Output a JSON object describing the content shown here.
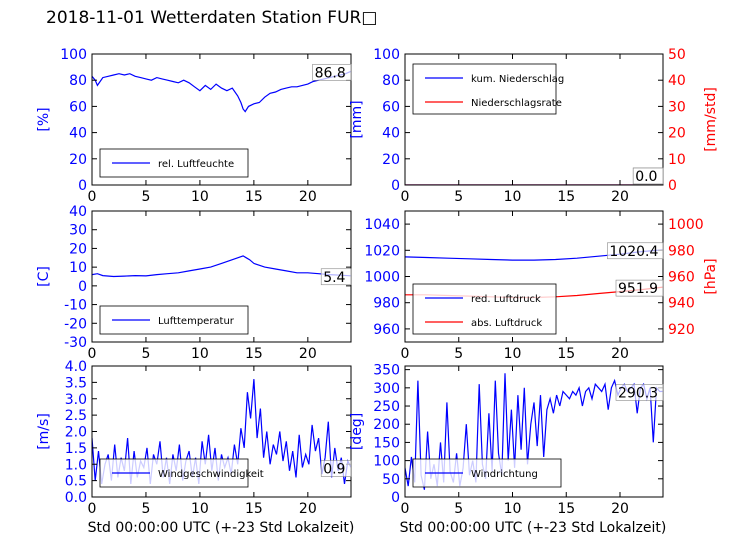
{
  "title": "2018-11-01 Wetterdaten Station FUR□",
  "xlabel": "Std 00:00:00 UTC (+-23 Std Lokalzeit)",
  "colors": {
    "left": "#0000ff",
    "right": "#ff0000",
    "text": "#000000"
  },
  "chart_data": [
    {
      "type": "line",
      "panel": "top-left",
      "ylabel": "[%]",
      "xlim": [
        0,
        24
      ],
      "ylim": [
        0,
        100
      ],
      "xticks": [
        0,
        5,
        10,
        15,
        20
      ],
      "yticks": [
        0,
        20,
        40,
        60,
        80,
        100
      ],
      "legend": "lower-left",
      "last_value": "86.8",
      "series": [
        {
          "name": "rel. Luftfeuchte",
          "axis": "left",
          "color": "#0000ff",
          "x": [
            0,
            0.3,
            0.5,
            1,
            1.5,
            2,
            2.5,
            3,
            3.5,
            4,
            4.5,
            5,
            5.5,
            6,
            6.5,
            7,
            7.5,
            8,
            8.5,
            9,
            9.5,
            10,
            10.5,
            11,
            11.5,
            12,
            12.5,
            13,
            13.5,
            13.8,
            14,
            14.2,
            14.5,
            15,
            15.5,
            16,
            16.5,
            17,
            17.5,
            18,
            18.5,
            19,
            19.5,
            20,
            20.5,
            21,
            21.5,
            22,
            22.5,
            23,
            23.5,
            24
          ],
          "y": [
            83,
            80,
            76,
            82,
            83,
            84,
            85,
            84,
            85,
            83,
            82,
            81,
            80,
            82,
            81,
            80,
            79,
            78,
            80,
            78,
            75,
            72,
            76,
            73,
            77,
            74,
            72,
            74,
            68,
            63,
            58,
            56,
            60,
            62,
            63,
            67,
            70,
            71,
            73,
            74,
            75,
            75,
            76,
            77,
            79,
            80,
            81,
            82,
            83,
            84,
            85,
            86.8
          ]
        }
      ]
    },
    {
      "type": "line",
      "panel": "top-right",
      "ylabel": "[mm]",
      "y2label": "[mm/std]",
      "xlim": [
        0,
        24
      ],
      "ylim": [
        0,
        100
      ],
      "y2lim": [
        0,
        50
      ],
      "xticks": [
        0,
        5,
        10,
        15,
        20
      ],
      "yticks": [
        0,
        20,
        40,
        60,
        80,
        100
      ],
      "y2ticks": [
        0,
        10,
        20,
        30,
        40,
        50
      ],
      "legend": "upper-left",
      "last_values": [
        "0.0",
        "0.0"
      ],
      "series": [
        {
          "name": "kum. Niederschlag",
          "axis": "left",
          "color": "#0000ff",
          "x": [
            0,
            24
          ],
          "y": [
            0,
            0
          ]
        },
        {
          "name": "Niederschlagsrate",
          "axis": "right",
          "color": "#ff0000",
          "x": [
            0,
            24
          ],
          "y": [
            0,
            0
          ]
        }
      ]
    },
    {
      "type": "line",
      "panel": "middle-left",
      "ylabel": "[C]",
      "xlim": [
        0,
        24
      ],
      "ylim": [
        -30,
        40
      ],
      "xticks": [
        0,
        5,
        10,
        15,
        20
      ],
      "yticks": [
        -30,
        -20,
        -10,
        0,
        10,
        20,
        30,
        40
      ],
      "legend": "lower-left",
      "last_value": "5.4",
      "series": [
        {
          "name": "Lufttemperatur",
          "axis": "left",
          "color": "#0000ff",
          "x": [
            0,
            0.5,
            1,
            2,
            3,
            4,
            5,
            6,
            7,
            8,
            9,
            10,
            11,
            12,
            13,
            13.5,
            14,
            14.3,
            14.6,
            15,
            16,
            17,
            18,
            19,
            20,
            21,
            22,
            23,
            24
          ],
          "y": [
            6,
            6.5,
            5.5,
            5,
            5.2,
            5.5,
            5.3,
            6,
            6.5,
            7,
            8,
            9,
            10,
            12,
            14,
            15,
            16,
            15,
            14,
            12,
            10,
            9,
            8,
            7,
            7,
            6.5,
            6,
            5.7,
            5.4
          ]
        }
      ]
    },
    {
      "type": "line",
      "panel": "middle-right",
      "ylabel": "",
      "y2label": "[hPa]",
      "xlim": [
        0,
        24
      ],
      "ylim": [
        950,
        1050
      ],
      "y2lim": [
        910,
        1010
      ],
      "xticks": [
        0,
        5,
        10,
        15,
        20
      ],
      "yticks": [
        960,
        980,
        1000,
        1020,
        1040
      ],
      "y2ticks": [
        920,
        940,
        960,
        980,
        1000
      ],
      "legend": "lower-left",
      "last_values": [
        "1020.4",
        "951.9"
      ],
      "series": [
        {
          "name": "red. Luftdruck",
          "axis": "left",
          "color": "#0000ff",
          "x": [
            0,
            2,
            4,
            6,
            8,
            10,
            12,
            14,
            16,
            18,
            20,
            22,
            24
          ],
          "y": [
            1015,
            1014.5,
            1014,
            1013.5,
            1013,
            1012.5,
            1012.5,
            1013,
            1014,
            1015.5,
            1017,
            1019,
            1020.4
          ]
        },
        {
          "name": "abs. Luftdruck",
          "axis": "right",
          "color": "#ff0000",
          "x": [
            0,
            2,
            4,
            6,
            8,
            10,
            12,
            14,
            16,
            18,
            20,
            22,
            24
          ],
          "y": [
            946,
            946,
            945.5,
            945,
            944.5,
            944,
            944,
            944.5,
            945.5,
            947,
            948.5,
            950,
            951.9
          ]
        }
      ]
    },
    {
      "type": "line",
      "panel": "bottom-left",
      "ylabel": "[m/s]",
      "xlim": [
        0,
        24
      ],
      "ylim": [
        0,
        4
      ],
      "xticks": [
        0,
        5,
        10,
        15,
        20
      ],
      "yticks": [
        0.0,
        0.5,
        1.0,
        1.5,
        2.0,
        2.5,
        3.0,
        3.5,
        4.0
      ],
      "legend": "lower-center",
      "last_value": "0.9",
      "series": [
        {
          "name": "Windgeschwindigkeit",
          "axis": "left",
          "color": "#0000ff",
          "x": [
            0,
            0.3,
            0.6,
            0.9,
            1.2,
            1.5,
            1.8,
            2.1,
            2.4,
            2.7,
            3.0,
            3.3,
            3.6,
            3.9,
            4.2,
            4.5,
            4.8,
            5.1,
            5.4,
            5.7,
            6.0,
            6.3,
            6.6,
            6.9,
            7.2,
            7.5,
            7.8,
            8.1,
            8.4,
            8.7,
            9.0,
            9.3,
            9.6,
            9.9,
            10.2,
            10.5,
            10.8,
            11.1,
            11.4,
            11.7,
            12.0,
            12.3,
            12.6,
            12.9,
            13.2,
            13.5,
            13.8,
            14.1,
            14.4,
            14.7,
            15.0,
            15.3,
            15.6,
            15.9,
            16.2,
            16.5,
            16.8,
            17.1,
            17.4,
            17.7,
            18.0,
            18.3,
            18.6,
            18.9,
            19.2,
            19.5,
            19.8,
            20.1,
            20.4,
            20.7,
            21.0,
            21.3,
            21.6,
            21.9,
            22.2,
            22.5,
            22.8,
            23.1,
            23.4,
            23.7,
            24.0
          ],
          "y": [
            1.8,
            0.5,
            1.4,
            0.4,
            1.0,
            1.3,
            0.5,
            1.6,
            0.6,
            1.2,
            0.8,
            1.8,
            0.4,
            1.4,
            0.6,
            1.1,
            0.9,
            1.5,
            0.4,
            1.3,
            1.0,
            1.7,
            0.6,
            1.2,
            0.4,
            1.3,
            0.8,
            1.6,
            0.5,
            1.1,
            1.4,
            0.6,
            1.2,
            0.4,
            1.7,
            1.0,
            1.9,
            0.8,
            1.5,
            0.5,
            1.3,
            0.9,
            1.2,
            0.7,
            1.6,
            1.0,
            2.1,
            1.5,
            3.2,
            2.4,
            3.6,
            1.8,
            2.7,
            1.2,
            2.0,
            1.0,
            1.6,
            1.3,
            2.0,
            1.1,
            1.7,
            0.8,
            1.4,
            0.6,
            1.9,
            0.9,
            1.3,
            1.0,
            2.2,
            1.4,
            1.8,
            0.7,
            1.2,
            2.3,
            0.6,
            1.5,
            0.8,
            1.2,
            0.4,
            1.1,
            0.9
          ]
        }
      ]
    },
    {
      "type": "line",
      "panel": "bottom-right",
      "ylabel": "[deg]",
      "xlim": [
        0,
        24
      ],
      "ylim": [
        0,
        360
      ],
      "xticks": [
        0,
        5,
        10,
        15,
        20
      ],
      "yticks": [
        0,
        50,
        100,
        150,
        200,
        250,
        300,
        350
      ],
      "legend": "lower-center",
      "last_value": "290.3",
      "series": [
        {
          "name": "Windrichtung",
          "axis": "left",
          "color": "#0000ff",
          "x": [
            0,
            0.3,
            0.6,
            0.9,
            1.2,
            1.5,
            1.8,
            2.1,
            2.4,
            2.7,
            3.0,
            3.3,
            3.6,
            3.9,
            4.2,
            4.5,
            4.8,
            5.1,
            5.4,
            5.7,
            6.0,
            6.3,
            6.6,
            6.9,
            7.2,
            7.5,
            7.8,
            8.1,
            8.4,
            8.7,
            9.0,
            9.3,
            9.6,
            9.9,
            10.2,
            10.5,
            10.8,
            11.1,
            11.4,
            11.7,
            12.0,
            12.3,
            12.6,
            12.9,
            13.2,
            13.5,
            13.8,
            14.1,
            14.4,
            14.7,
            15.0,
            15.3,
            15.6,
            15.9,
            16.2,
            16.5,
            16.8,
            17.1,
            17.4,
            17.7,
            18.0,
            18.3,
            18.6,
            18.9,
            19.2,
            19.5,
            19.8,
            20.1,
            20.4,
            20.7,
            21.0,
            21.3,
            21.6,
            21.9,
            22.2,
            22.5,
            22.8,
            23.1,
            23.4,
            23.7,
            24.0
          ],
          "y": [
            80,
            30,
            110,
            40,
            320,
            60,
            20,
            180,
            50,
            90,
            30,
            150,
            40,
            260,
            70,
            40,
            120,
            30,
            80,
            200,
            60,
            100,
            40,
            310,
            90,
            50,
            230,
            70,
            320,
            120,
            60,
            340,
            100,
            240,
            80,
            280,
            130,
            300,
            90,
            200,
            260,
            140,
            280,
            110,
            240,
            270,
            230,
            280,
            250,
            290,
            280,
            270,
            290,
            280,
            300,
            250,
            290,
            300,
            270,
            310,
            300,
            290,
            310,
            240,
            300,
            320,
            280,
            300,
            310,
            290,
            300,
            310,
            230,
            300,
            310,
            270,
            300,
            150,
            300,
            290,
            290.3
          ]
        }
      ]
    }
  ]
}
